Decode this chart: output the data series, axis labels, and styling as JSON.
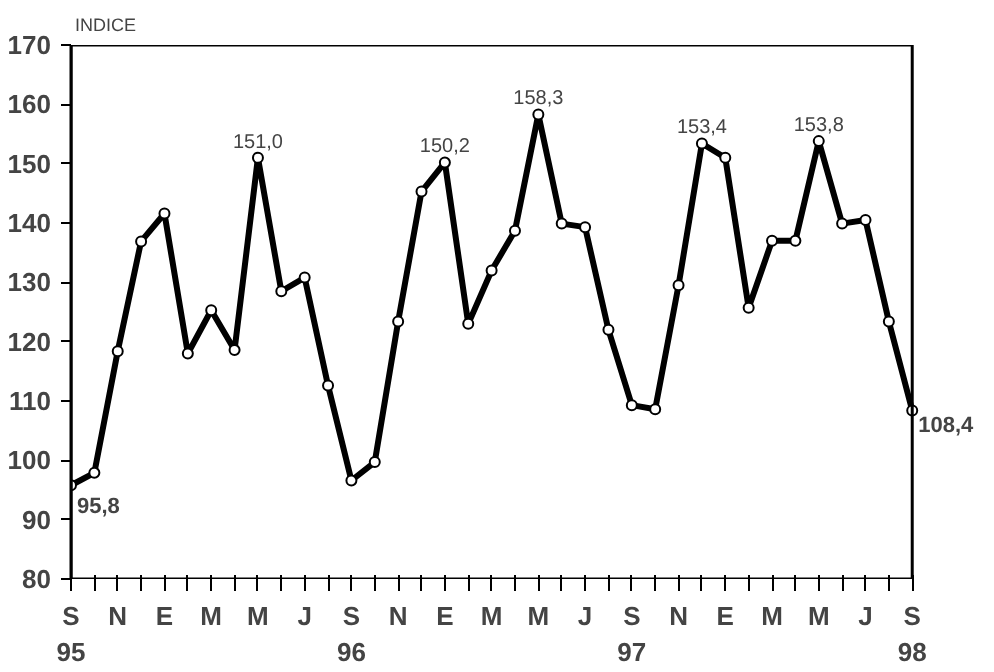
{
  "chart_data": {
    "type": "line",
    "ylabel": "INDICE",
    "categories": [
      "S\n95",
      null,
      "N",
      null,
      "E",
      null,
      "M",
      null,
      "M",
      null,
      "J",
      null,
      "S\n96",
      null,
      "N",
      null,
      "E",
      null,
      "M",
      null,
      "M",
      null,
      "J",
      null,
      "S\n97",
      null,
      "N",
      null,
      "E",
      null,
      "M",
      null,
      "M",
      null,
      "J",
      null,
      "S\n98"
    ],
    "series": [
      {
        "color": "#000000",
        "values": [
          95.8,
          97.9,
          118.4,
          136.9,
          141.6,
          118,
          125.3,
          118.6,
          151.0,
          128.5,
          130.8,
          112.6,
          96.6,
          99.7,
          123.4,
          145.3,
          150.2,
          123,
          132,
          138.7,
          158.3,
          139.9,
          139.3,
          122,
          109.3,
          108.6,
          129.5,
          153.4,
          151,
          125.7,
          137,
          137,
          153.8,
          139.9,
          140.5,
          123.4,
          108.4
        ],
        "value_labels": [
          "95,8",
          null,
          null,
          null,
          null,
          null,
          null,
          null,
          "151,0",
          null,
          null,
          null,
          null,
          null,
          null,
          null,
          "150,2",
          null,
          null,
          null,
          "158,3",
          null,
          null,
          null,
          null,
          null,
          null,
          "153,4",
          null,
          null,
          null,
          null,
          "153,8",
          null,
          null,
          null,
          "108,4"
        ]
      }
    ],
    "ylim": [
      80,
      170
    ],
    "yticks": [
      80,
      90,
      100,
      110,
      120,
      130,
      140,
      150,
      160,
      170
    ],
    "grid": false,
    "marker": "circle",
    "line_style": "solid"
  }
}
